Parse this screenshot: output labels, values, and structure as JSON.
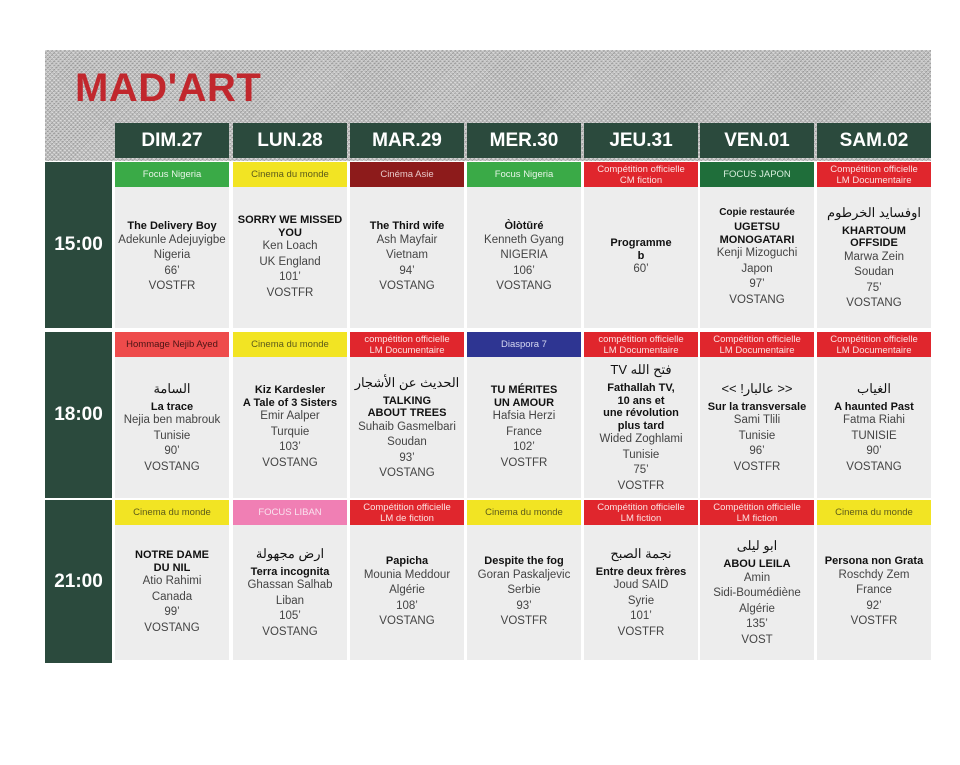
{
  "title": "MAD'ART",
  "days": [
    "DIM.27",
    "LUN.28",
    "MAR.29",
    "MER.30",
    "JEU.31",
    "VEN.01",
    "SAM.02"
  ],
  "times": [
    "15:00",
    "18:00",
    "21:00"
  ],
  "colors": {
    "header": "#2b4a3d",
    "logo": "#c1272d",
    "cell": "#ededed"
  },
  "rows": [
    [
      {
        "tag": [
          "Focus Nigeria"
        ],
        "color": "green",
        "pre": "",
        "ar": "",
        "title": [
          "The Delivery Boy"
        ],
        "lines": [
          "Adekunle Adejuyigbe",
          "Nigeria",
          "66’",
          "VOSTFR"
        ]
      },
      {
        "tag": [
          "Cinema du monde"
        ],
        "color": "yellow",
        "pre": "",
        "ar": "",
        "title": [
          "SORRY WE MISSED",
          "YOU"
        ],
        "lines": [
          "Ken Loach",
          "UK England",
          "101’",
          "VOSTFR"
        ]
      },
      {
        "tag": [
          "Cinéma Asie"
        ],
        "color": "darkred",
        "pre": "",
        "ar": "",
        "title": [
          "The Third wife"
        ],
        "lines": [
          "Ash Mayfair",
          "Vietnam",
          "94’",
          "VOSTANG"
        ]
      },
      {
        "tag": [
          "Focus Nigeria"
        ],
        "color": "green",
        "pre": "",
        "ar": "",
        "title": [
          "Òlòtūré"
        ],
        "lines": [
          "Kenneth Gyang",
          "NIGERIA",
          "106’",
          "VOSTANG"
        ]
      },
      {
        "tag": [
          "Compétition officielle",
          "CM  fiction"
        ],
        "color": "red",
        "pre": "",
        "ar": "",
        "title": [
          "Programme",
          "b"
        ],
        "lines": [
          "60’"
        ]
      },
      {
        "tag": [
          "FOCUS JAPON"
        ],
        "color": "darkgreen",
        "pre": "Copie restaurée",
        "ar": "",
        "title": [
          "UGETSU",
          "MONOGATARI"
        ],
        "lines": [
          "Kenji Mizoguchi",
          "Japon",
          "97’",
          "VOSTANG"
        ]
      },
      {
        "tag": [
          "Compétition officielle",
          "LM Documentaire"
        ],
        "color": "red",
        "pre": "",
        "ar": "اوفسايد الخرطوم",
        "title": [
          "KHARTOUM",
          "OFFSIDE"
        ],
        "lines": [
          "Marwa Zein",
          "Soudan",
          "75’",
          "VOSTANG"
        ]
      }
    ],
    [
      {
        "tag": [
          "Hommage Nejib Ayed"
        ],
        "color": "lightred",
        "pre": "",
        "ar": "السامة",
        "title": [
          "La trace"
        ],
        "lines": [
          "Nejia ben mabrouk",
          "Tunisie",
          "90’",
          "VOSTANG"
        ]
      },
      {
        "tag": [
          "Cinema du monde"
        ],
        "color": "yellow",
        "pre": "",
        "ar": "",
        "title": [
          "Kiz Kardesler",
          "A Tale of 3 Sisters"
        ],
        "lines": [
          "Emir Aalper",
          "Turquie",
          "103’",
          "VOSTANG"
        ]
      },
      {
        "tag": [
          "compétition officielle",
          "LM Documentaire"
        ],
        "color": "red",
        "pre": "",
        "ar": "الحديث عن الأشجار",
        "title": [
          "TALKING",
          "ABOUT TREES"
        ],
        "lines": [
          "Suhaib Gasmelbari",
          "Soudan",
          "93’",
          "VOSTANG"
        ]
      },
      {
        "tag": [
          "Diaspora 7"
        ],
        "color": "blue",
        "pre": "",
        "ar": "",
        "title": [
          "TU MÉRITES",
          "UN AMOUR"
        ],
        "lines": [
          "Hafsia Herzi",
          "France",
          "102’",
          "VOSTFR"
        ]
      },
      {
        "tag": [
          "compétition officielle",
          "LM Documentaire"
        ],
        "color": "red",
        "pre": "",
        "ar": "فتح الله TV",
        "title": [
          "Fathallah TV,",
          "10 ans et",
          "une révolution",
          "plus tard"
        ],
        "lines": [
          "Wided Zoghlami",
          "Tunisie",
          "75’",
          "VOSTFR"
        ]
      },
      {
        "tag": [
          "Compétition officielle",
          "LM Documentaire"
        ],
        "color": "red",
        "pre": "",
        "ar": "<< عالبار! >>",
        "title": [
          "Sur la transversale"
        ],
        "lines": [
          "Sami Tlili",
          "Tunisie",
          "96’",
          "VOSTFR"
        ]
      },
      {
        "tag": [
          "Compétition officielle",
          "LM Documentaire"
        ],
        "color": "red",
        "pre": "",
        "ar": "الغياب",
        "title": [
          "A haunted Past"
        ],
        "lines": [
          "Fatma Riahi",
          "TUNISIE",
          "90’",
          "VOSTANG"
        ]
      }
    ],
    [
      {
        "tag": [
          "Cinema du monde"
        ],
        "color": "yellow",
        "pre": "",
        "ar": "",
        "title": [
          "NOTRE DAME",
          "DU NIL"
        ],
        "lines": [
          "Atio Rahimi",
          "Canada",
          "99’",
          "VOSTANG"
        ]
      },
      {
        "tag": [
          "FOCUS LIBAN"
        ],
        "color": "pink",
        "pre": "",
        "ar": "ارض مجهولة",
        "title": [
          "Terra incognita"
        ],
        "lines": [
          "Ghassan Salhab",
          "Liban",
          "105’",
          "VOSTANG"
        ]
      },
      {
        "tag": [
          "Compétition officielle",
          "LM   de fiction"
        ],
        "color": "red",
        "pre": "",
        "ar": "",
        "title": [
          "Papicha"
        ],
        "lines": [
          "Mounia Meddour",
          "Algérie",
          "108’",
          "VOSTANG"
        ]
      },
      {
        "tag": [
          "Cinema du monde"
        ],
        "color": "yellow",
        "pre": "",
        "ar": "",
        "title": [
          "Despite the fog"
        ],
        "lines": [
          "Goran  Paskaljevic",
          "Serbie",
          "93’",
          "VOSTFR"
        ]
      },
      {
        "tag": [
          "Compétition officielle",
          "LM fiction"
        ],
        "color": "red",
        "pre": "",
        "ar": "نجمة الصبح",
        "title": [
          "Entre deux frères"
        ],
        "lines": [
          "Joud SAID",
          "Syrie",
          "101’",
          "VOSTFR"
        ]
      },
      {
        "tag": [
          "Compétition officielle",
          "LM  fiction"
        ],
        "color": "red",
        "pre": "",
        "ar": "ابو ليلى",
        "title": [
          "ABOU LEILA"
        ],
        "lines": [
          "Amin",
          "Sidi-Boumédiène",
          "Algérie",
          "135’",
          "VOST"
        ]
      },
      {
        "tag": [
          "Cinema du monde"
        ],
        "color": "yellow",
        "pre": "",
        "ar": "",
        "title": [
          "Persona non Grata"
        ],
        "lines": [
          "Roschdy Zem",
          "France",
          "92’",
          "VOSTFR"
        ]
      }
    ]
  ]
}
